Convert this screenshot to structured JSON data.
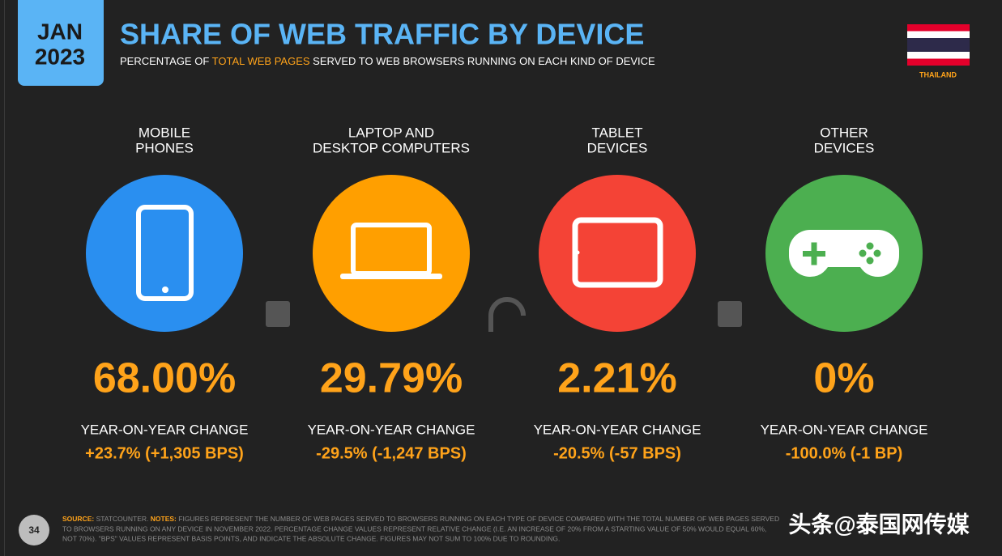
{
  "header": {
    "month": "JAN",
    "year": "2023",
    "title": "SHARE OF WEB TRAFFIC BY DEVICE",
    "subtitle": [
      "PERCENTAGE OF ",
      "TOTAL WEB PAGES",
      " SERVED TO WEB BROWSERS RUNNING ON EACH KIND OF DEVICE"
    ],
    "country": "THAILAND"
  },
  "devices": [
    {
      "label": [
        "MOBILE",
        "PHONES"
      ],
      "share": "68.00%",
      "change_label": "YEAR-ON-YEAR CHANGE",
      "change": "+23.7% (+1,305 BPS)"
    },
    {
      "label": [
        "LAPTOP AND",
        "DESKTOP COMPUTERS"
      ],
      "share": "29.79%",
      "change_label": "YEAR-ON-YEAR CHANGE",
      "change": "-29.5% (-1,247 BPS)"
    },
    {
      "label": [
        "TABLET",
        "DEVICES"
      ],
      "share": "2.21%",
      "change_label": "YEAR-ON-YEAR CHANGE",
      "change": "-20.5% (-57 BPS)"
    },
    {
      "label": [
        "OTHER",
        "DEVICES"
      ],
      "share": "0%",
      "change_label": "YEAR-ON-YEAR CHANGE",
      "change": "-100.0% (-1 BP)"
    }
  ],
  "footer": {
    "page": "34",
    "source_label": "SOURCE: ",
    "source": "STATCOUNTER. ",
    "notes_label": "NOTES: ",
    "notes": [
      "FIGURES REPRESENT THE NUMBER OF WEB PAGES SERVED TO BROWSERS RUNNING ON EACH TYPE OF DEVICE COMPARED WITH THE TOTAL NUMBER OF WEB PAGES SERVED",
      "TO BROWSERS RUNNING ON ANY DEVICE IN NOVEMBER 2022. PERCENTAGE CHANGE VALUES REPRESENT RELATIVE CHANGE (I.E. AN INCREASE OF 20% FROM A STARTING VALUE OF 50% WOULD EQUAL 60%,",
      "NOT 70%). \"BPS\" VALUES REPRESENT BASIS POINTS, AND INDICATE THE ABSOLUTE CHANGE. FIGURES MAY NOT SUM TO 100% DUE TO ROUNDING."
    ],
    "watermark": "头条@泰国网传媒"
  }
}
